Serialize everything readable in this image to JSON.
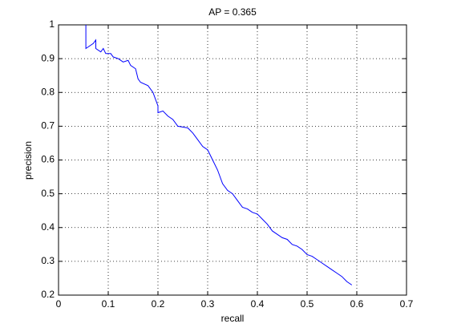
{
  "chart_data": {
    "type": "line",
    "title": "AP = 0.365",
    "x_label": "recall",
    "y_label": "precision",
    "x": [
      0.055,
      0.055,
      0.07,
      0.075,
      0.075,
      0.085,
      0.09,
      0.095,
      0.105,
      0.11,
      0.12,
      0.13,
      0.14,
      0.145,
      0.155,
      0.16,
      0.165,
      0.18,
      0.19,
      0.195,
      0.2,
      0.2,
      0.21,
      0.22,
      0.23,
      0.24,
      0.26,
      0.27,
      0.28,
      0.29,
      0.3,
      0.31,
      0.32,
      0.33,
      0.34,
      0.35,
      0.36,
      0.37,
      0.38,
      0.39,
      0.4,
      0.41,
      0.42,
      0.43,
      0.44,
      0.45,
      0.46,
      0.47,
      0.48,
      0.49,
      0.5,
      0.51,
      0.52,
      0.53,
      0.54,
      0.55,
      0.56,
      0.57,
      0.58,
      0.59
    ],
    "series": [
      {
        "color": "#0000ff",
        "values": [
          1.0,
          0.93,
          0.945,
          0.955,
          0.93,
          0.92,
          0.93,
          0.915,
          0.915,
          0.905,
          0.9,
          0.89,
          0.895,
          0.88,
          0.87,
          0.84,
          0.83,
          0.82,
          0.8,
          0.78,
          0.76,
          0.74,
          0.745,
          0.73,
          0.72,
          0.7,
          0.695,
          0.68,
          0.66,
          0.64,
          0.63,
          0.6,
          0.57,
          0.53,
          0.51,
          0.5,
          0.48,
          0.46,
          0.455,
          0.445,
          0.44,
          0.425,
          0.41,
          0.39,
          0.38,
          0.37,
          0.365,
          0.35,
          0.345,
          0.335,
          0.32,
          0.315,
          0.305,
          0.295,
          0.285,
          0.275,
          0.265,
          0.255,
          0.24,
          0.23
        ]
      }
    ],
    "xlim": [
      0,
      0.7
    ],
    "ylim": [
      0.2,
      1
    ],
    "xticks": [
      0,
      0.1,
      0.2,
      0.3,
      0.4,
      0.5,
      0.6,
      0.7
    ],
    "yticks": [
      0.2,
      0.3,
      0.4,
      0.5,
      0.6,
      0.7,
      0.8,
      0.9,
      1
    ],
    "grid": true
  }
}
